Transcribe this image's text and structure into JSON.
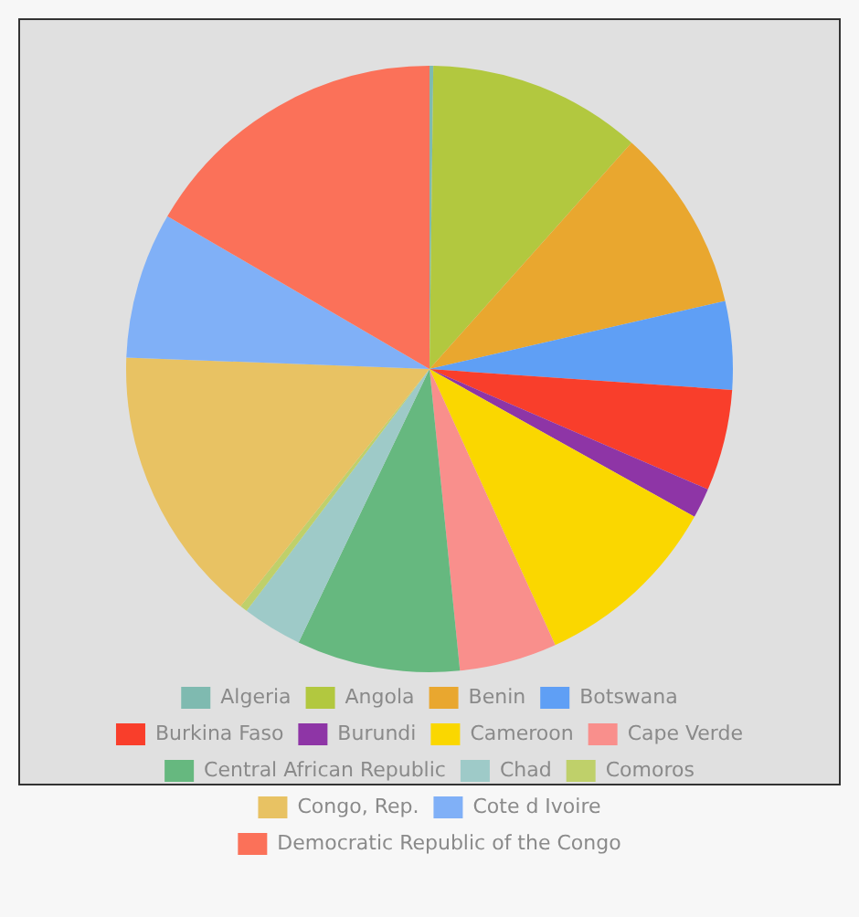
{
  "chart_data": {
    "type": "pie",
    "categories": [
      "Algeria",
      "Angola",
      "Benin",
      "Botswana",
      "Burkina Faso",
      "Burundi",
      "Cameroon",
      "Cape Verde",
      "Central African Republic",
      "Chad",
      "Comoros",
      "Congo, Rep.",
      "Cote d Ivoire",
      "Democratic Republic of the Congo"
    ],
    "values": [
      0.2,
      11.4,
      9.8,
      4.7,
      5.4,
      1.6,
      10.1,
      5.2,
      8.7,
      3.2,
      0.4,
      14.9,
      7.8,
      16.6
    ],
    "colors": [
      "#7fbab0",
      "#b2c83f",
      "#e9a72f",
      "#5f9ff5",
      "#f93e2b",
      "#8e35a6",
      "#fad700",
      "#f98f8c",
      "#66b87f",
      "#9ecac8",
      "#bfd06a",
      "#e8c263",
      "#80b0f7",
      "#fb7159"
    ],
    "legend": "bottom"
  }
}
